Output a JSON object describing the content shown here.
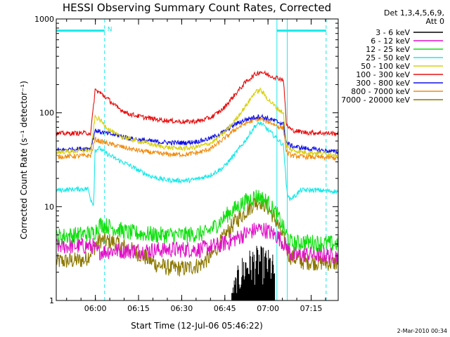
{
  "chart_data": {
    "type": "line",
    "title": "HESSI Observing Summary Count Rates, Corrected",
    "xlabel": "Start Time (12-Jul-06 05:46:22)",
    "ylabel": "Corrected Count Rate (s⁻¹ detector⁻¹)",
    "x_unit": "minutes after 05:46:22",
    "xlim": [
      0,
      98
    ],
    "ylim": [
      1,
      1000
    ],
    "y_scale": "log",
    "grid": false,
    "legend_position": "right",
    "x_ticks": [
      {
        "label": "06:00",
        "minutes": 13.6
      },
      {
        "label": "06:15",
        "minutes": 28.6
      },
      {
        "label": "06:30",
        "minutes": 43.6
      },
      {
        "label": "06:45",
        "minutes": 58.6
      },
      {
        "label": "07:00",
        "minutes": 73.6
      },
      {
        "label": "07:15",
        "minutes": 88.6
      }
    ],
    "y_ticks": [
      {
        "label": "1",
        "value": 1
      },
      {
        "label": "10",
        "value": 10
      },
      {
        "label": "100",
        "value": 100
      },
      {
        "label": "1000",
        "value": 1000
      }
    ],
    "legend_header": [
      "Det 1,3,4,5,6,9,",
      "Att 0"
    ],
    "series": [
      {
        "name": "3 - 6 keV",
        "color": "#000000",
        "points": [
          [
            61,
            1
          ],
          [
            62,
            1.4
          ],
          [
            64,
            2.2
          ],
          [
            66,
            2.6
          ],
          [
            68,
            2.8
          ],
          [
            70,
            3.0
          ],
          [
            72,
            2.9
          ],
          [
            74,
            2.7
          ],
          [
            76,
            2.3
          ]
        ]
      },
      {
        "name": "6 - 12 keV",
        "color": "#e010c8",
        "points": [
          [
            0,
            3.8
          ],
          [
            13,
            3.8
          ],
          [
            14,
            3.3
          ],
          [
            20,
            3.4
          ],
          [
            30,
            3.4
          ],
          [
            40,
            3.5
          ],
          [
            50,
            3.5
          ],
          [
            55,
            3.8
          ],
          [
            60,
            4.2
          ],
          [
            65,
            5.0
          ],
          [
            70,
            5.8
          ],
          [
            73,
            5.6
          ],
          [
            77,
            4.8
          ],
          [
            80,
            3.8
          ],
          [
            82,
            3.0
          ],
          [
            86,
            3.1
          ],
          [
            98,
            3.0
          ]
        ]
      },
      {
        "name": "12 - 25 keV",
        "color": "#10e010",
        "points": [
          [
            0,
            4.8
          ],
          [
            13,
            5.2
          ],
          [
            15,
            6.5
          ],
          [
            18,
            6.2
          ],
          [
            25,
            5.3
          ],
          [
            35,
            5.0
          ],
          [
            45,
            5.0
          ],
          [
            52,
            5.2
          ],
          [
            56,
            6.5
          ],
          [
            60,
            8.5
          ],
          [
            64,
            10.5
          ],
          [
            68,
            12.5
          ],
          [
            70,
            13
          ],
          [
            73,
            11.5
          ],
          [
            77,
            8.0
          ],
          [
            80,
            5.0
          ],
          [
            82,
            4.0
          ],
          [
            86,
            4.2
          ],
          [
            98,
            4.0
          ]
        ]
      },
      {
        "name": "25 - 50 keV",
        "color": "#18e8e8",
        "points": [
          [
            0,
            15
          ],
          [
            11,
            15.5
          ],
          [
            12,
            12
          ],
          [
            13,
            10.5
          ],
          [
            13.5,
            40
          ],
          [
            15,
            42
          ],
          [
            18,
            36
          ],
          [
            21,
            32
          ],
          [
            25,
            28
          ],
          [
            29,
            24
          ],
          [
            33,
            21
          ],
          [
            37,
            19.5
          ],
          [
            41,
            19
          ],
          [
            46,
            19
          ],
          [
            50,
            20
          ],
          [
            54,
            22
          ],
          [
            58,
            26
          ],
          [
            62,
            36
          ],
          [
            66,
            52
          ],
          [
            69,
            72
          ],
          [
            71,
            78
          ],
          [
            74,
            64
          ],
          [
            77,
            52
          ],
          [
            79,
            45
          ],
          [
            80,
            16
          ],
          [
            81,
            12
          ],
          [
            83,
            13
          ],
          [
            85,
            15
          ],
          [
            90,
            15
          ],
          [
            98,
            14.5
          ]
        ]
      },
      {
        "name": "50 - 100 keV",
        "color": "#d8d010",
        "points": [
          [
            0,
            38
          ],
          [
            12,
            40
          ],
          [
            13.5,
            90
          ],
          [
            15,
            85
          ],
          [
            18,
            68
          ],
          [
            21,
            58
          ],
          [
            26,
            52
          ],
          [
            31,
            48
          ],
          [
            36,
            44
          ],
          [
            41,
            42
          ],
          [
            46,
            42
          ],
          [
            50,
            44
          ],
          [
            54,
            48
          ],
          [
            58,
            60
          ],
          [
            62,
            82
          ],
          [
            66,
            120
          ],
          [
            69,
            165
          ],
          [
            71,
            175
          ],
          [
            74,
            135
          ],
          [
            77,
            110
          ],
          [
            79,
            100
          ],
          [
            80,
            44
          ],
          [
            82,
            40
          ],
          [
            86,
            38
          ],
          [
            98,
            36
          ]
        ]
      },
      {
        "name": "100 - 300 keV",
        "color": "#e81010",
        "points": [
          [
            0,
            60
          ],
          [
            12,
            61
          ],
          [
            13.5,
            175
          ],
          [
            15,
            165
          ],
          [
            18,
            140
          ],
          [
            21,
            115
          ],
          [
            25,
            98
          ],
          [
            30,
            90
          ],
          [
            35,
            85
          ],
          [
            40,
            82
          ],
          [
            45,
            80
          ],
          [
            50,
            82
          ],
          [
            54,
            90
          ],
          [
            58,
            110
          ],
          [
            62,
            155
          ],
          [
            66,
            215
          ],
          [
            69,
            255
          ],
          [
            71,
            275
          ],
          [
            74,
            250
          ],
          [
            77,
            235
          ],
          [
            79,
            225
          ],
          [
            80,
            74
          ],
          [
            82,
            65
          ],
          [
            86,
            62
          ],
          [
            98,
            60
          ]
        ]
      },
      {
        "name": "300 - 800 keV",
        "color": "#1010e8",
        "points": [
          [
            0,
            40
          ],
          [
            12,
            42
          ],
          [
            13.5,
            65
          ],
          [
            15,
            63
          ],
          [
            18,
            60
          ],
          [
            22,
            57
          ],
          [
            26,
            53
          ],
          [
            30,
            51
          ],
          [
            35,
            49
          ],
          [
            40,
            48
          ],
          [
            45,
            48
          ],
          [
            50,
            50
          ],
          [
            54,
            54
          ],
          [
            58,
            62
          ],
          [
            62,
            75
          ],
          [
            66,
            85
          ],
          [
            69,
            90
          ],
          [
            71,
            92
          ],
          [
            74,
            86
          ],
          [
            77,
            80
          ],
          [
            79,
            76
          ],
          [
            80,
            48
          ],
          [
            82,
            44
          ],
          [
            86,
            42
          ],
          [
            98,
            38
          ]
        ]
      },
      {
        "name": "800 - 7000 keV",
        "color": "#f08c10",
        "points": [
          [
            0,
            34
          ],
          [
            12,
            35
          ],
          [
            13.5,
            52
          ],
          [
            15,
            50
          ],
          [
            18,
            47
          ],
          [
            22,
            44
          ],
          [
            26,
            41
          ],
          [
            30,
            39
          ],
          [
            35,
            37
          ],
          [
            40,
            36
          ],
          [
            45,
            36
          ],
          [
            50,
            38
          ],
          [
            54,
            42
          ],
          [
            58,
            52
          ],
          [
            62,
            66
          ],
          [
            66,
            78
          ],
          [
            69,
            84
          ],
          [
            71,
            86
          ],
          [
            74,
            80
          ],
          [
            77,
            72
          ],
          [
            79,
            68
          ],
          [
            80,
            38
          ],
          [
            82,
            35
          ],
          [
            86,
            34
          ],
          [
            98,
            33
          ]
        ]
      },
      {
        "name": "7000 - 20000 keV",
        "color": "#8c7800",
        "points": [
          [
            0,
            2.6
          ],
          [
            10,
            2.7
          ],
          [
            13,
            3.6
          ],
          [
            15,
            4.4
          ],
          [
            20,
            4.2
          ],
          [
            25,
            3.6
          ],
          [
            30,
            3.0
          ],
          [
            35,
            2.4
          ],
          [
            40,
            2.2
          ],
          [
            45,
            2.2
          ],
          [
            50,
            2.4
          ],
          [
            54,
            3.0
          ],
          [
            58,
            4.6
          ],
          [
            62,
            6.8
          ],
          [
            66,
            9.0
          ],
          [
            69,
            11
          ],
          [
            71,
            11.5
          ],
          [
            74,
            9.5
          ],
          [
            77,
            6.5
          ],
          [
            79,
            4.5
          ],
          [
            81,
            3.0
          ],
          [
            85,
            2.6
          ],
          [
            98,
            2.5
          ]
        ]
      }
    ],
    "annotations": [
      {
        "type": "flag_bar",
        "color": "#18e8e8",
        "x_start": 0,
        "x_end": 16.8,
        "y_value": 750,
        "label": "N"
      },
      {
        "type": "flag_bar",
        "color": "#18e8e8",
        "x_start": 76.7,
        "x_end": 93.8,
        "y_value": 750,
        "label": ""
      },
      {
        "type": "vline",
        "style": "dashed",
        "color": "#18e8e8",
        "x": 16.8
      },
      {
        "type": "vline",
        "style": "dashed",
        "color": "#18e8e8",
        "x": 93.8
      },
      {
        "type": "vline",
        "style": "solid",
        "color": "#18e8e8",
        "x": 0
      },
      {
        "type": "vline",
        "style": "solid",
        "color": "#18e8e8",
        "x": 76.7
      },
      {
        "type": "vline",
        "style": "solid",
        "color": "#18e8e8",
        "x": 80.3
      }
    ]
  },
  "footer_date": "2-Mar-2010 00:34"
}
